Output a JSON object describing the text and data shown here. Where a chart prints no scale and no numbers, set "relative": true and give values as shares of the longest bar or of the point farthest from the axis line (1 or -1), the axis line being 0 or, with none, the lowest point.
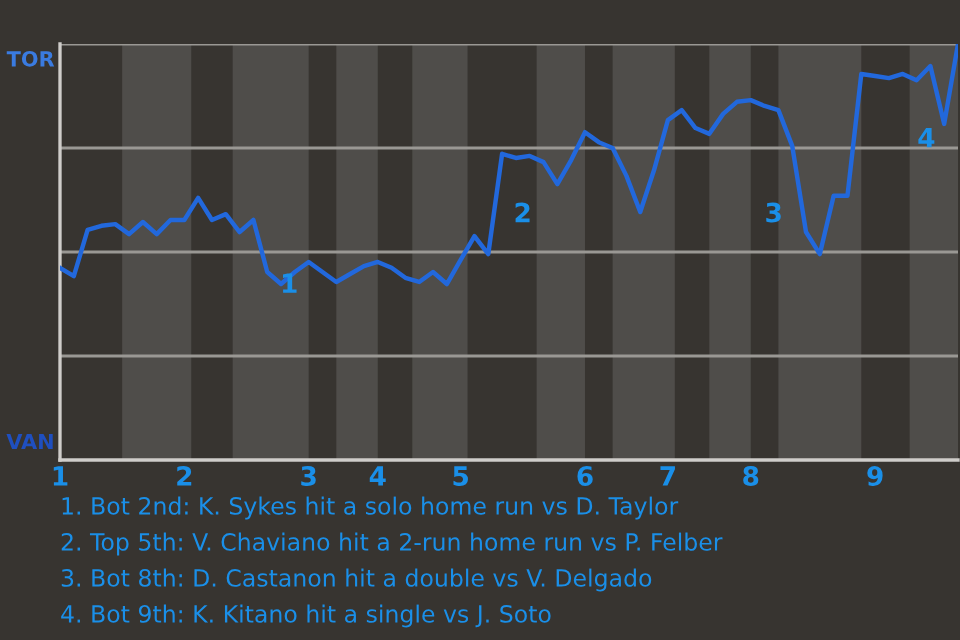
{
  "chart_data": {
    "type": "line",
    "relative": true,
    "categories": [
      "1",
      null,
      null,
      null,
      null,
      null,
      null,
      null,
      null,
      "2",
      null,
      null,
      null,
      null,
      null,
      null,
      null,
      null,
      "3",
      null,
      null,
      null,
      null,
      "4",
      null,
      null,
      null,
      null,
      null,
      "5",
      null,
      null,
      null,
      null,
      null,
      null,
      null,
      null,
      "6",
      null,
      null,
      null,
      null,
      null,
      "7",
      null,
      null,
      null,
      null,
      null,
      "8",
      null,
      null,
      null,
      null,
      null,
      null,
      null,
      null,
      "9",
      null,
      null,
      null,
      null,
      null,
      null
    ],
    "series": [
      {
        "color": "#2268dc",
        "values": [
          0.462,
          0.442,
          0.553,
          0.563,
          0.567,
          0.543,
          0.572,
          0.543,
          0.577,
          0.577,
          0.63,
          0.577,
          0.591,
          0.548,
          0.577,
          0.452,
          0.423,
          0.452,
          0.476,
          0.452,
          0.428,
          0.447,
          0.466,
          0.476,
          0.462,
          0.438,
          0.428,
          0.452,
          0.423,
          0.481,
          0.538,
          0.495,
          0.736,
          0.726,
          0.731,
          0.716,
          0.663,
          0.721,
          0.788,
          0.764,
          0.75,
          0.683,
          0.596,
          0.697,
          0.817,
          0.841,
          0.798,
          0.784,
          0.832,
          0.861,
          0.865,
          0.851,
          0.841,
          0.755,
          0.548,
          0.495,
          0.635,
          0.635,
          0.928,
          0.923,
          0.918,
          0.928,
          0.913,
          0.947,
          0.808,
          1.0
        ]
      }
    ],
    "grid": "y",
    "marker": "none",
    "line_style": "solid",
    "annotations": [
      "TOR",
      "VAN",
      "1",
      "2",
      "3",
      "4",
      "1. Bot 2nd: K. Sykes hit a solo home run vs D. Taylor",
      "2. Top 5th: V. Chaviano hit a 2-run home run vs P. Felber",
      "3. Bot 8th: D. Castanon hit a double vs V. Delgado",
      "4. Bot 9th: K. Kitano hit a single vs J. Soto"
    ]
  }
}
